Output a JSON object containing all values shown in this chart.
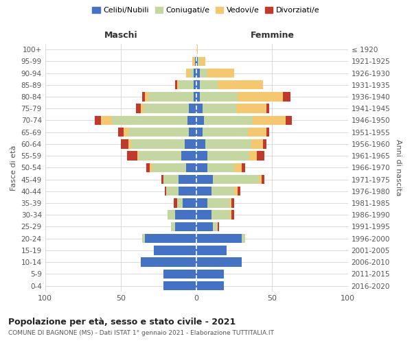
{
  "age_groups": [
    "0-4",
    "5-9",
    "10-14",
    "15-19",
    "20-24",
    "25-29",
    "30-34",
    "35-39",
    "40-44",
    "45-49",
    "50-54",
    "55-59",
    "60-64",
    "65-69",
    "70-74",
    "75-79",
    "80-84",
    "85-89",
    "90-94",
    "95-99",
    "100+"
  ],
  "birth_years": [
    "2016-2020",
    "2011-2015",
    "2006-2010",
    "2001-2005",
    "1996-2000",
    "1991-1995",
    "1986-1990",
    "1981-1985",
    "1976-1980",
    "1971-1975",
    "1966-1970",
    "1961-1965",
    "1956-1960",
    "1951-1955",
    "1946-1950",
    "1941-1945",
    "1936-1940",
    "1931-1935",
    "1926-1930",
    "1921-1925",
    "≤ 1920"
  ],
  "maschi": {
    "celibi": [
      22,
      22,
      37,
      28,
      34,
      14,
      14,
      9,
      12,
      12,
      7,
      10,
      8,
      5,
      6,
      5,
      2,
      2,
      2,
      1,
      0
    ],
    "coniugati": [
      0,
      0,
      0,
      0,
      2,
      3,
      5,
      4,
      8,
      10,
      22,
      28,
      35,
      40,
      50,
      30,
      30,
      10,
      2,
      0,
      0
    ],
    "vedovi": [
      0,
      0,
      0,
      0,
      0,
      0,
      0,
      0,
      0,
      0,
      2,
      1,
      2,
      3,
      7,
      2,
      2,
      1,
      3,
      2,
      0
    ],
    "divorziati": [
      0,
      0,
      0,
      0,
      0,
      0,
      0,
      2,
      1,
      1,
      2,
      7,
      5,
      4,
      4,
      3,
      2,
      1,
      0,
      0,
      0
    ]
  },
  "femmine": {
    "nubili": [
      18,
      18,
      30,
      20,
      30,
      11,
      10,
      7,
      10,
      11,
      7,
      7,
      6,
      4,
      5,
      4,
      2,
      2,
      2,
      1,
      0
    ],
    "coniugate": [
      0,
      0,
      0,
      0,
      2,
      3,
      12,
      15,
      15,
      30,
      18,
      28,
      30,
      30,
      32,
      22,
      25,
      12,
      5,
      1,
      0
    ],
    "vedove": [
      0,
      0,
      0,
      0,
      0,
      0,
      1,
      1,
      2,
      2,
      5,
      5,
      8,
      12,
      22,
      20,
      30,
      30,
      18,
      4,
      1
    ],
    "divorziate": [
      0,
      0,
      0,
      0,
      0,
      1,
      2,
      2,
      2,
      2,
      2,
      5,
      2,
      2,
      4,
      2,
      5,
      0,
      0,
      0,
      0
    ]
  },
  "colors": {
    "celibi": "#4472c4",
    "coniugati": "#c5d7a0",
    "vedovi": "#f5c76e",
    "divorziati": "#c0392b"
  },
  "xlim": 100,
  "title": "Popolazione per età, sesso e stato civile - 2021",
  "subtitle": "COMUNE DI BAGNONE (MS) - Dati ISTAT 1° gennaio 2021 - Elaborazione TUTTITALIA.IT",
  "ylabel_left": "Fasce di età",
  "ylabel_right": "Anni di nascita",
  "xlabel_maschi": "Maschi",
  "xlabel_femmine": "Femmine",
  "legend_labels": [
    "Celibi/Nubili",
    "Coniugati/e",
    "Vedovi/e",
    "Divorziati/e"
  ],
  "background_color": "#ffffff",
  "grid_color": "#cccccc"
}
